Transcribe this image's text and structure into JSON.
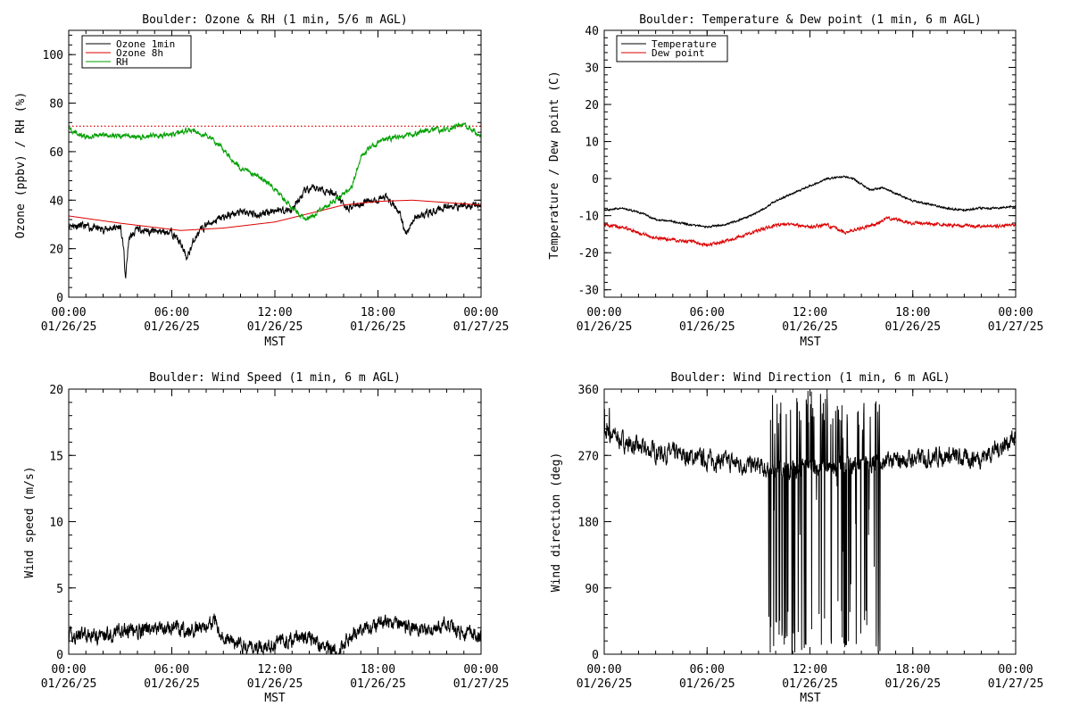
{
  "chart_data": [
    {
      "type": "line",
      "title": "Boulder: Ozone & RH (1 min, 5/6 m AGL)",
      "ylabel": "Ozone (ppbv) / RH (%)",
      "xlabel": "MST",
      "ylim": [
        0,
        110
      ],
      "yticks": [
        0,
        20,
        40,
        60,
        80,
        100
      ],
      "xlim": [
        0,
        24
      ],
      "xtick_hours": [
        0,
        6,
        12,
        18,
        24
      ],
      "xtick_labels": [
        [
          "00:00",
          "01/26/25"
        ],
        [
          "06:00",
          "01/26/25"
        ],
        [
          "12:00",
          "01/26/25"
        ],
        [
          "18:00",
          "01/26/25"
        ],
        [
          "00:00",
          "01/27/25"
        ]
      ],
      "legend": {
        "placement": "top-left",
        "entries": [
          {
            "label": "Ozone 1min",
            "color": "#000000"
          },
          {
            "label": "Ozone 8h",
            "color": "#dd0000"
          },
          {
            "label": "RH",
            "color": "#00a000"
          }
        ]
      },
      "reference_line": {
        "y": 70.5,
        "color": "#dd0000",
        "style": "dotted"
      },
      "series": [
        {
          "name": "Ozone 1min",
          "color": "#000000",
          "noise": 1.5,
          "seed": 11,
          "x": [
            0,
            1,
            2,
            3,
            3.2,
            3.3,
            3.5,
            4,
            5,
            6,
            6.5,
            6.9,
            7.3,
            8,
            9,
            10,
            11,
            12,
            13,
            13.8,
            14.5,
            15.5,
            16.2,
            16.8,
            17.5,
            18.5,
            19.2,
            19.6,
            20.2,
            21,
            22,
            23,
            24
          ],
          "y": [
            30,
            29,
            28,
            29,
            20,
            7,
            24,
            28,
            27,
            27,
            22,
            16,
            24,
            30,
            33,
            35,
            34,
            36,
            36,
            44,
            45,
            43,
            37,
            38,
            40,
            41,
            36,
            26,
            33,
            35,
            37,
            38,
            38
          ]
        },
        {
          "name": "Ozone 8h",
          "color": "#dd0000",
          "noise": 0,
          "seed": 0,
          "x": [
            0,
            3,
            6.5,
            9,
            12,
            14,
            16,
            18,
            20,
            22,
            24
          ],
          "y": [
            33.5,
            30.5,
            27.5,
            28.5,
            31,
            34.5,
            38,
            39.5,
            40,
            39,
            38
          ]
        },
        {
          "name": "RH",
          "color": "#00a000",
          "noise": 1.0,
          "seed": 29,
          "x": [
            0,
            0.8,
            2,
            4,
            5,
            6,
            7,
            8,
            9,
            10,
            11,
            12,
            12.8,
            13.8,
            14.5,
            15.5,
            16.5,
            17,
            18,
            19,
            20,
            21,
            22,
            22.8,
            23.3,
            24
          ],
          "y": [
            70,
            66,
            67,
            66,
            67,
            67,
            69,
            67,
            61,
            53,
            50,
            45,
            38,
            32,
            35,
            40,
            46,
            58,
            64,
            66,
            67,
            69,
            69,
            71,
            70,
            66
          ]
        }
      ]
    },
    {
      "type": "line",
      "title": "Boulder: Temperature & Dew point (1 min, 6 m AGL)",
      "ylabel": "Temperature / Dew point (C)",
      "xlabel": "MST",
      "ylim": [
        -32,
        40
      ],
      "yticks": [
        -30,
        -20,
        -10,
        0,
        10,
        20,
        30,
        40
      ],
      "xlim": [
        0,
        24
      ],
      "xtick_hours": [
        0,
        6,
        12,
        18,
        24
      ],
      "xtick_labels": [
        [
          "00:00",
          "01/26/25"
        ],
        [
          "06:00",
          "01/26/25"
        ],
        [
          "12:00",
          "01/26/25"
        ],
        [
          "18:00",
          "01/26/25"
        ],
        [
          "00:00",
          "01/27/25"
        ]
      ],
      "legend": {
        "placement": "top-left",
        "entries": [
          {
            "label": "Temperature",
            "color": "#000000"
          },
          {
            "label": "Dew point",
            "color": "#dd0000"
          }
        ]
      },
      "series": [
        {
          "name": "Temperature",
          "color": "#000000",
          "noise": 0.25,
          "seed": 5,
          "x": [
            0,
            1,
            2,
            3,
            4,
            5,
            6,
            7,
            8,
            9,
            10,
            11,
            12,
            13,
            14,
            14.5,
            15.5,
            16.3,
            17,
            18,
            19,
            20,
            21,
            22,
            23,
            24
          ],
          "y": [
            -8.5,
            -8,
            -9,
            -11,
            -11.5,
            -12.5,
            -13,
            -12.5,
            -11,
            -9,
            -6,
            -4,
            -2,
            0,
            0.5,
            0,
            -3,
            -2.5,
            -4,
            -6,
            -7,
            -8,
            -8.5,
            -8,
            -8,
            -7.5
          ]
        },
        {
          "name": "Dew point",
          "color": "#dd0000",
          "noise": 0.4,
          "seed": 17,
          "x": [
            0,
            1,
            2,
            3,
            4,
            5,
            6,
            7,
            8,
            9,
            10,
            11,
            12,
            13,
            14,
            15,
            16,
            16.5,
            17,
            18,
            20,
            22,
            24
          ],
          "y": [
            -12.5,
            -13,
            -14.5,
            -16,
            -16.5,
            -17,
            -18,
            -17,
            -15.5,
            -14,
            -12.5,
            -12.5,
            -13,
            -12.5,
            -14.5,
            -13.5,
            -12,
            -10.5,
            -11,
            -12,
            -12.5,
            -13,
            -12.5
          ]
        }
      ]
    },
    {
      "type": "line",
      "title": "Boulder: Wind Speed (1 min, 6 m AGL)",
      "ylabel": "Wind speed (m/s)",
      "xlabel": "MST",
      "ylim": [
        0,
        20
      ],
      "yticks": [
        0,
        5,
        10,
        15,
        20
      ],
      "xlim": [
        0,
        24
      ],
      "xtick_hours": [
        0,
        6,
        12,
        18,
        24
      ],
      "xtick_labels": [
        [
          "00:00",
          "01/26/25"
        ],
        [
          "06:00",
          "01/26/25"
        ],
        [
          "12:00",
          "01/26/25"
        ],
        [
          "18:00",
          "01/26/25"
        ],
        [
          "00:00",
          "01/27/25"
        ]
      ],
      "series": [
        {
          "name": "Wind speed",
          "color": "#000000",
          "noise": 0.55,
          "seed": 41,
          "clampMin": 0,
          "x": [
            0,
            2,
            4,
            6,
            7,
            8,
            8.5,
            9,
            10,
            11,
            12,
            13,
            14,
            15,
            15.5,
            16,
            16.5,
            17,
            18,
            19,
            20,
            21,
            22,
            23,
            24
          ],
          "y": [
            1.3,
            1.5,
            1.8,
            2.0,
            1.8,
            2.2,
            2.6,
            1.2,
            0.6,
            0.5,
            0.8,
            1.2,
            1.4,
            0.4,
            0.2,
            0.8,
            1.5,
            2.0,
            2.2,
            2.4,
            2.0,
            1.8,
            2.2,
            1.5,
            1.5
          ]
        }
      ]
    },
    {
      "type": "line",
      "title": "Boulder: Wind Direction (1 min, 6 m AGL)",
      "ylabel": "Wind direction (deg)",
      "xlabel": "MST",
      "ylim": [
        0,
        360
      ],
      "yticks": [
        0,
        90,
        180,
        270,
        360
      ],
      "xlim": [
        0,
        24
      ],
      "xtick_hours": [
        0,
        6,
        12,
        18,
        24
      ],
      "xtick_labels": [
        [
          "00:00",
          "01/26/25"
        ],
        [
          "06:00",
          "01/26/25"
        ],
        [
          "12:00",
          "01/26/25"
        ],
        [
          "18:00",
          "01/26/25"
        ],
        [
          "00:00",
          "01/27/25"
        ]
      ],
      "series": [
        {
          "name": "Wind direction",
          "color": "#000000",
          "noise": 12,
          "seed": 7,
          "clampMin": 0,
          "clampMax": 360,
          "erratic": [
            [
              0,
              0.4
            ],
            [
              9.4,
              16.2
            ]
          ],
          "x": [
            0,
            0.4,
            1,
            2,
            3,
            4,
            5,
            6,
            7,
            8,
            9,
            9.5,
            16.2,
            17,
            18,
            19,
            20,
            21,
            22,
            23,
            24
          ],
          "y": [
            300,
            300,
            290,
            280,
            275,
            272,
            268,
            265,
            262,
            258,
            255,
            250,
            260,
            262,
            265,
            268,
            270,
            265,
            268,
            280,
            295
          ]
        }
      ]
    }
  ]
}
